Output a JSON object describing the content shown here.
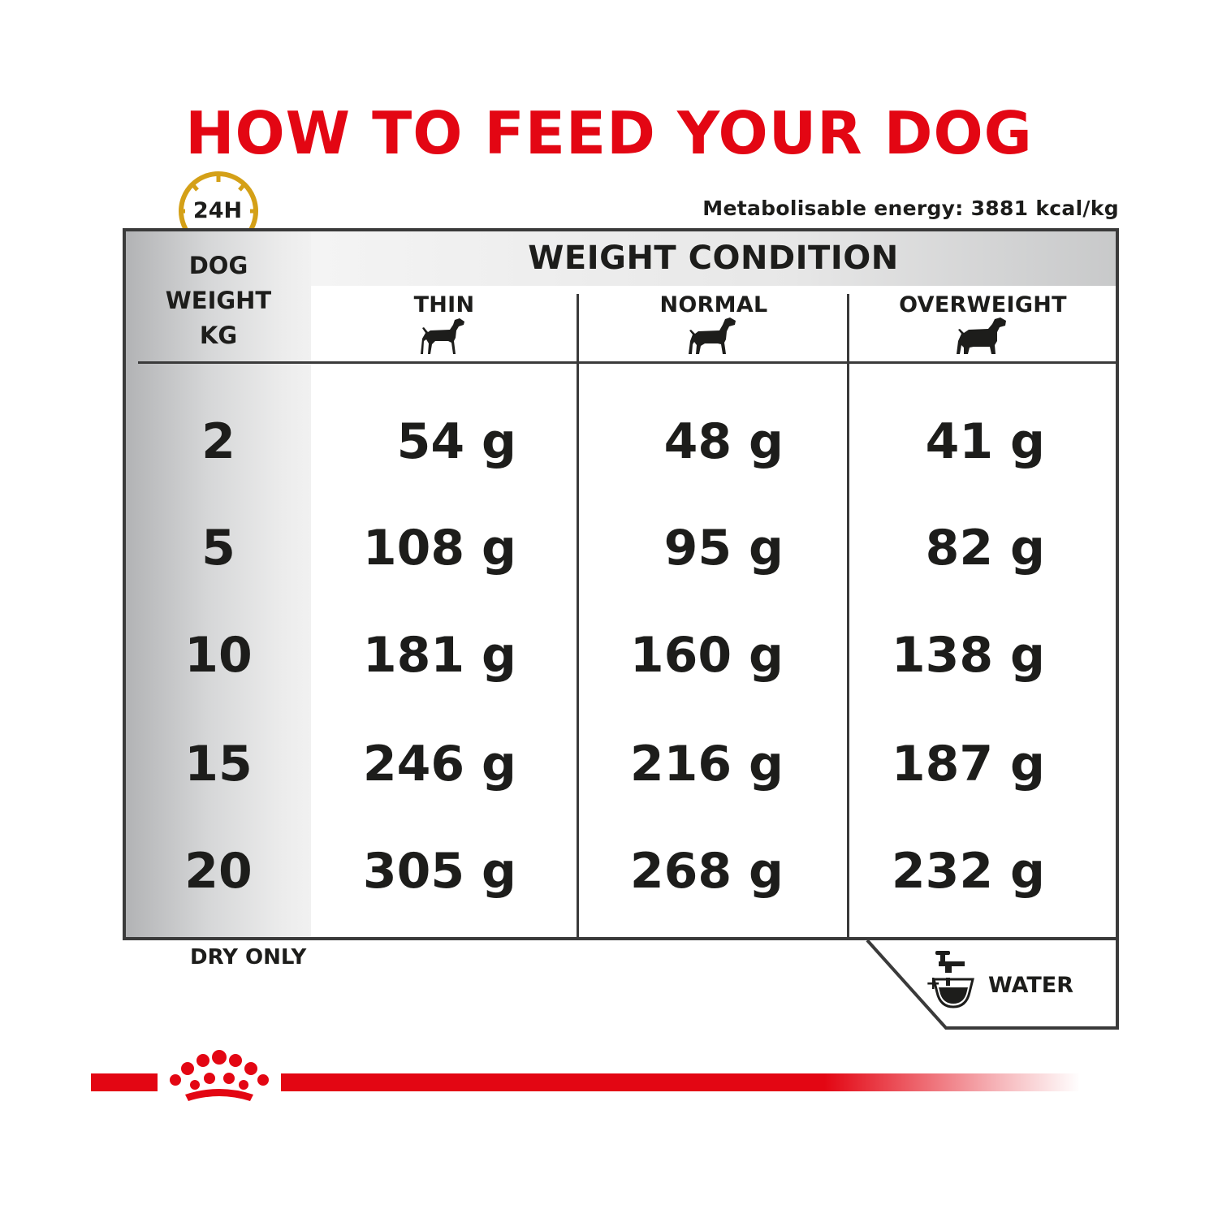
{
  "title": "HOW TO FEED YOUR DOG",
  "clock_badge": "24H",
  "energy": "Metabolisable energy: 3881 kcal/kg",
  "weight_header": [
    "DOG",
    "WEIGHT",
    "KG"
  ],
  "condition_header": "WEIGHT CONDITION",
  "columns": [
    "THIN",
    "NORMAL",
    "OVERWEIGHT"
  ],
  "rows": [
    {
      "kg": "2",
      "thin": "54 g",
      "normal": "48 g",
      "overweight": "41 g"
    },
    {
      "kg": "5",
      "thin": "108 g",
      "normal": "95 g",
      "overweight": "82 g"
    },
    {
      "kg": "10",
      "thin": "181 g",
      "normal": "160 g",
      "overweight": "138 g"
    },
    {
      "kg": "15",
      "thin": "246 g",
      "normal": "216 g",
      "overweight": "187 g"
    },
    {
      "kg": "20",
      "thin": "305 g",
      "normal": "268 g",
      "overweight": "232 g"
    }
  ],
  "footer_left": "DRY ONLY",
  "water_symbol": "+",
  "water_label": "WATER",
  "colors": {
    "accent": "#e30613",
    "clock": "#d4a017",
    "text": "#1d1d1b",
    "border": "#3a3a3a"
  },
  "icons": [
    "clock-icon",
    "thin-dog-icon",
    "normal-dog-icon",
    "overweight-dog-icon",
    "water-tap-icon",
    "crown-logo"
  ]
}
